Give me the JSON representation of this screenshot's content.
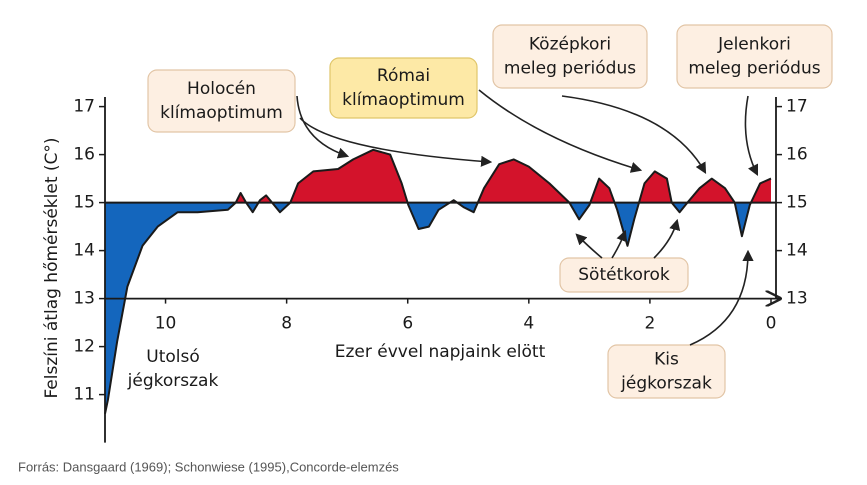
{
  "chart_data": {
    "type": "area",
    "x_label": "Ezer évvel napjaink elött",
    "y_label": "Felszíni átlag hőmérséklet (C°)",
    "x": [
      11.0,
      10.95,
      10.8,
      10.63,
      10.38,
      10.13,
      9.8,
      9.47,
      8.97,
      8.84,
      8.76,
      8.67,
      8.56,
      8.44,
      8.34,
      8.24,
      8.11,
      7.94,
      7.81,
      7.56,
      7.15,
      6.9,
      6.57,
      6.29,
      6.1,
      5.99,
      5.82,
      5.65,
      5.49,
      5.24,
      5.07,
      4.91,
      4.74,
      4.49,
      4.25,
      4.0,
      3.66,
      3.33,
      3.17,
      3.0,
      2.84,
      2.67,
      2.54,
      2.37,
      2.26,
      2.09,
      1.92,
      1.72,
      1.64,
      1.51,
      1.38,
      1.18,
      0.98,
      0.76,
      0.6,
      0.48,
      0.35,
      0.18,
      0
    ],
    "values": [
      10.6,
      10.9,
      12.1,
      13.25,
      14.1,
      14.5,
      14.8,
      14.8,
      14.85,
      15.0,
      15.2,
      15.0,
      14.8,
      15.05,
      15.15,
      15.0,
      14.8,
      15.0,
      15.4,
      15.65,
      15.7,
      15.9,
      16.1,
      16.0,
      15.4,
      14.95,
      14.45,
      14.5,
      14.85,
      15.05,
      14.9,
      14.8,
      15.3,
      15.8,
      15.9,
      15.75,
      15.4,
      15.0,
      14.65,
      14.95,
      15.5,
      15.3,
      14.85,
      14.1,
      14.65,
      15.4,
      15.65,
      15.5,
      15.0,
      14.8,
      15.0,
      15.3,
      15.5,
      15.3,
      15.0,
      14.3,
      14.95,
      15.4,
      15.5
    ],
    "baseline": 15,
    "x_axis_at": 13,
    "color_above": "#d3132b",
    "color_below": "#1466bd",
    "xlim": [
      11,
      0
    ],
    "xticks": [
      10,
      8,
      6,
      4,
      2,
      0
    ],
    "ylim": [
      10,
      17.2
    ],
    "yticks": [
      11,
      12,
      13,
      14,
      15,
      16,
      17
    ],
    "y2lim": [
      13,
      17.2
    ],
    "y2ticks": [
      13,
      14,
      15,
      16,
      17
    ],
    "annotations": [
      {
        "lines": [
          "Holocén",
          "klímaoptimum"
        ]
      },
      {
        "lines": [
          "Római",
          "klímaoptimum"
        ]
      },
      {
        "lines": [
          "Középkori",
          "meleg periódus"
        ]
      },
      {
        "lines": [
          "Jelenkori",
          "meleg periódus"
        ]
      },
      {
        "lines": [
          "Sötétkorok"
        ]
      },
      {
        "lines": [
          "Kis",
          "jégkorszak"
        ]
      },
      {
        "lines": [
          "Utolsó",
          "jégkorszak"
        ]
      }
    ]
  },
  "source": "Forrás: Dansgaard (1969); Schonwiese (1995),Concorde-elemzés"
}
